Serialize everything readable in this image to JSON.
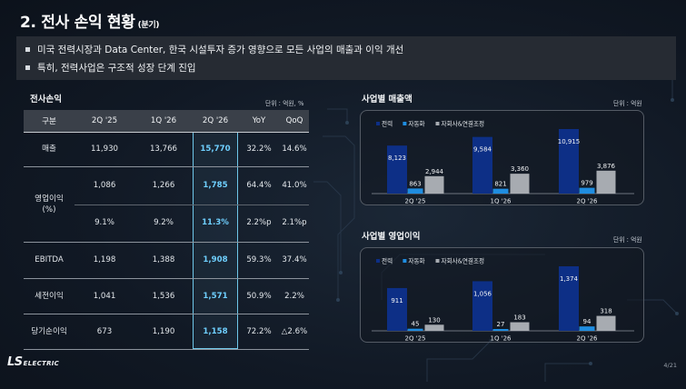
{
  "title": {
    "main": "2. 전사 손익 현황",
    "sub": "(분기)"
  },
  "bullets": [
    "미국 전력시장과  Data Center, 한국 시설투자 증가 영향으로 모든 사업의 매출과 이익 개선",
    "특히, 전력사업은 구조적 성장 단계 진입"
  ],
  "table": {
    "title": "전사손익",
    "unit": "단위 : 억원, %",
    "headers": [
      "구분",
      "2Q '25",
      "1Q '26",
      "2Q '26",
      "YoY",
      "QoQ"
    ],
    "rows": [
      {
        "label": "매출",
        "cells": [
          "11,930",
          "13,766",
          "15,770",
          "32.2%",
          "14.6%"
        ]
      },
      {
        "label": "영업이익\n(%)",
        "cells": [
          "1,086",
          "1,266",
          "1,785",
          "64.4%",
          "41.0%"
        ],
        "sub": [
          "9.1%",
          "9.2%",
          "11.3%",
          "2.2%p",
          "2.1%p"
        ]
      },
      {
        "label": "EBITDA",
        "cells": [
          "1,198",
          "1,388",
          "1,908",
          "59.3%",
          "37.4%"
        ]
      },
      {
        "label": "세전이익",
        "cells": [
          "1,041",
          "1,536",
          "1,571",
          "50.9%",
          "2.2%"
        ]
      },
      {
        "label": "당기순이익",
        "cells": [
          "673",
          "1,190",
          "1,158",
          "72.2%",
          "△2.6%"
        ]
      }
    ]
  },
  "charts": {
    "revenue": {
      "title": "사업별 매출액",
      "unit": "단위 : 억원"
    },
    "op": {
      "title": "사업별 영업이익",
      "unit": "단위 : 억원"
    }
  },
  "chart_data": [
    {
      "type": "bar",
      "title": "사업별 매출액",
      "categories": [
        "2Q '25",
        "1Q '26",
        "2Q '26"
      ],
      "series": [
        {
          "name": "전력",
          "values": [
            8123,
            9584,
            10915
          ]
        },
        {
          "name": "자동화",
          "values": [
            863,
            821,
            979
          ]
        },
        {
          "name": "자회사&연결조정",
          "values": [
            2944,
            3360,
            3876
          ]
        }
      ],
      "colors": [
        "#0d2f86",
        "#1f8de0",
        "#a7abb1"
      ],
      "legend": "top-left"
    },
    {
      "type": "bar",
      "title": "사업별 영업이익",
      "categories": [
        "2Q '25",
        "1Q '26",
        "2Q '26"
      ],
      "series": [
        {
          "name": "전력",
          "values": [
            911,
            1056,
            1374
          ]
        },
        {
          "name": "자동화",
          "values": [
            45,
            27,
            94
          ]
        },
        {
          "name": "자회사&연결조정",
          "values": [
            130,
            183,
            318
          ]
        }
      ],
      "colors": [
        "#0d2f86",
        "#1f8de0",
        "#a7abb1"
      ],
      "legend": "top-left"
    }
  ],
  "footer": {
    "logo_main": "LS",
    "logo_sub": "ELECTRIC",
    "page": "4/21"
  }
}
